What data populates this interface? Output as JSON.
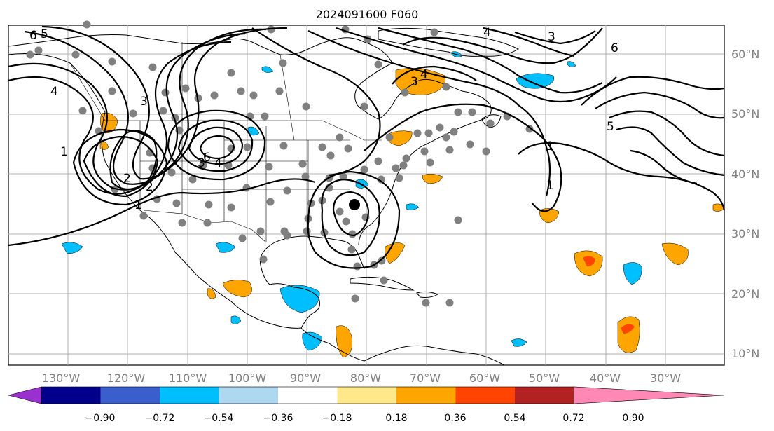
{
  "title": "2024091600 F060",
  "longitude_labels": [
    "130°W",
    "120°W",
    "110°W",
    "100°W",
    "90°W",
    "80°W",
    "70°W",
    "60°W",
    "50°W",
    "40°W",
    "30°W"
  ],
  "latitude_labels": [
    "60°N",
    "50°N",
    "40°N",
    "30°N",
    "20°N",
    "10°N"
  ],
  "colorbar": {
    "tick_labels": [
      "−0.90",
      "−0.72",
      "−0.54",
      "−0.36",
      "−0.18",
      "0.18",
      "0.36",
      "0.54",
      "0.72",
      "0.90"
    ],
    "colors": [
      "#9b30d0",
      "#00008b",
      "#3a5fcd",
      "#00bfff",
      "#add8f0",
      "#ffffff",
      "#ffe88a",
      "#ffa500",
      "#ff4500",
      "#b22222",
      "#ff88b4"
    ]
  },
  "contour_labels": [
    "6",
    "5",
    "4",
    "3",
    "2",
    "1",
    "6",
    "4",
    "3",
    "2",
    "1",
    "4",
    "3",
    "4",
    "3",
    "5",
    "6",
    "1",
    "1"
  ],
  "colors": {
    "gray_marker": "#808080",
    "grid": "#b0b0b0"
  }
}
